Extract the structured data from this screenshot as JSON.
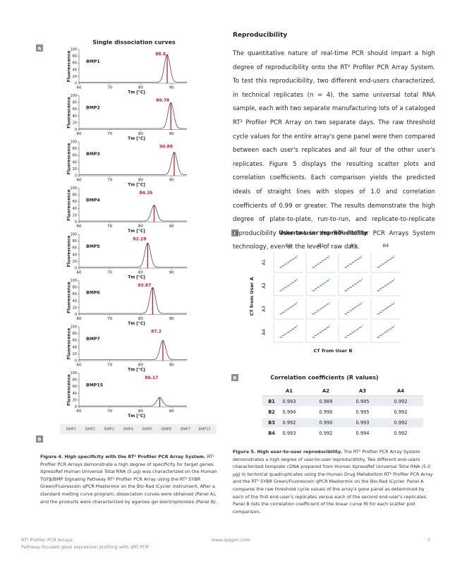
{
  "figure4": {
    "panel_a": "A",
    "title": "Single dissociation curves",
    "y_label": "Fluorescence",
    "x_label": "Tm [°C]",
    "xlim": [
      60,
      95
    ],
    "ylim": [
      0,
      100
    ],
    "xticks": [
      60,
      70,
      80,
      90
    ],
    "yticks": [
      0,
      20,
      40,
      60,
      80,
      100
    ],
    "curves": [
      {
        "name": "BMP1",
        "tm": 88.6,
        "height": 85
      },
      {
        "name": "BMP2",
        "tm": 89.78,
        "height": 80
      },
      {
        "name": "BMP3",
        "tm": 90.88,
        "height": 70
      },
      {
        "name": "BMP4",
        "tm": 84.35,
        "height": 50
      },
      {
        "name": "BMP5",
        "tm": 82.28,
        "height": 75
      },
      {
        "name": "BMP6",
        "tm": 83.87,
        "height": 80
      },
      {
        "name": "BMP7",
        "tm": 87.2,
        "height": 60
      },
      {
        "name": "BMP15",
        "tm": 86.17,
        "height": 28
      }
    ],
    "panel_b": "B",
    "lanes": [
      "BMP1",
      "BMP2",
      "BMP3",
      "BMP4",
      "BMP5",
      "BMP6",
      "BMP7",
      "BMP15"
    ],
    "caption_title": "Figure 4. High specificity with the RT² Profiler PCR Array System.",
    "caption_text": "RT² Profiler PCR Arrays demonstrate a high degree of specificity for target genes. XpressRef Human Universal Total RNA (5 µg) was characterized on the Human TGFβ/BMP Signaling Pathway RT² Profiler PCR Array using the RT² SYBR Green/Fluorescein qPCR Mastermix on the Bio-Rad iCycler instrument. After a standard melting curve program, dissociation curves were obtained (Panel A), and the products were characterized by agarose gel electrophoresis (Panel B)."
  },
  "reproducibility": {
    "heading": "Reproducibility",
    "paragraph": "The quantitative nature of real-time PCR should impart a high degree of reproducibility onto the RT² Profiler PCR Array System. To test this reproducibility, two different end-users characterized, in technical replicates (n = 4), the same universal total RNA sample, each with two separate manufacturing lots of a cataloged RT² Profiler PCR Array on two separate days. The raw threshold cycle values for the entire array's gene panel were then compared between each user's replicates and all four of the other user's replicates. Figure 5 displays the resulting scatter plots and correlation coefficients. Each comparison yields the predicted ideals of straight lines with slopes of 1.0 and correlation coefficients of 0.99 or greater. The results demonstrate the high degree of plate-to-plate, run-to-run, and replicate-to-replicate reproducibility inherent in the RT² Profiler PCR Arrays System technology, even at the level of raw data."
  },
  "figure5": {
    "panel_a": "A",
    "title_a": "User-to-user reproducibility",
    "columns": [
      "B1",
      "B2",
      "B3",
      "B4"
    ],
    "rows": [
      "A1",
      "A2",
      "A3",
      "A4"
    ],
    "y_label": "CT from User A",
    "x_label": "CT from User B",
    "panel_b": "B",
    "title_b": "Correlation coefficients (R values)",
    "table": {
      "header": [
        "A1",
        "A2",
        "A3",
        "A4"
      ],
      "rows": [
        [
          "B1",
          "0.993",
          "0.989",
          "0.995",
          "0.992"
        ],
        [
          "B2",
          "0.994",
          "0.990",
          "0.995",
          "0.992"
        ],
        [
          "B3",
          "0.992",
          "0.990",
          "0.993",
          "0.992"
        ],
        [
          "B4",
          "0.993",
          "0.992",
          "0.994",
          "0.992"
        ]
      ]
    },
    "caption_title": "Figure 5. High user-to-user reproducibility.",
    "caption_text": "The RT² Profiler PCR Array System demonstrates a high degree of user-to-user reproducibility. Two different end-users characterized template cDNA prepared from Human XpressRef Universal Total RNA (5.0 µg) in technical quadruplicates using the Human Drug Metabolism RT² Profiler PCR Array and the RT² SYBR Green/Fluorescein qPCR Mastermix on the Bio-Rad iCycler. Panel A compares the raw threshold cycle values of the array's gene panel as determined by each of the first end-user's replicates versus each of the second end-user's replicates. Panel B lists the correlation coefficient of the linear curve fit for each scatter plot comparison."
  },
  "footer": {
    "left": [
      "RT² Profiler PCR Arrays:",
      "Pathway-focused gene expression profiling with qRT-PCR"
    ],
    "center": "www.qiagen.com",
    "page": "7"
  }
}
